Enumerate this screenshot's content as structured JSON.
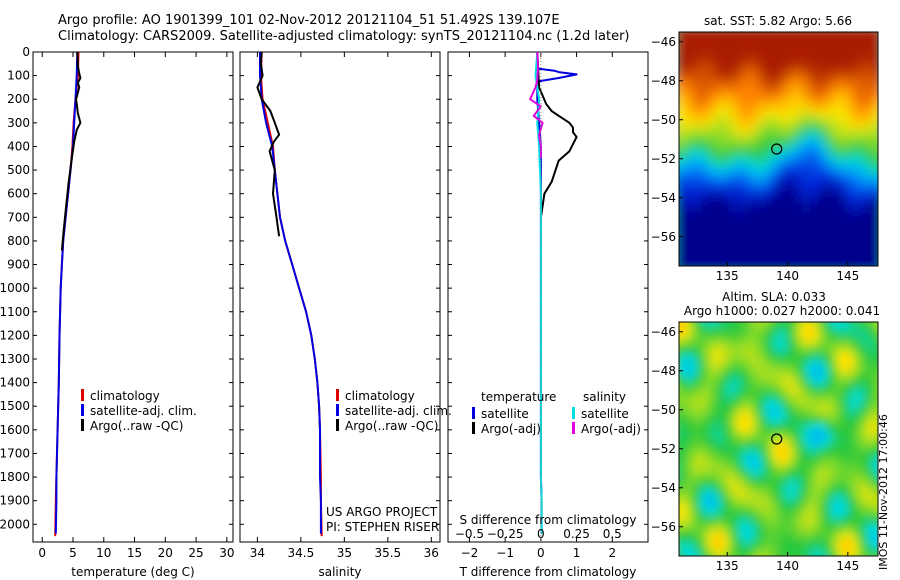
{
  "header": {
    "line1": "Argo profile: AO 1901399_101 02-Nov-2012 20121104_51 51.492S 139.107E",
    "line2": "Climatology: CARS2009. Satellite-adjusted climatology: synTS_20121104.nc (1.2d later)"
  },
  "side_stamp": "IMOS 11-Nov-2012 17:00:46",
  "project_credit": [
    "US ARGO PROJECT",
    "PI: STEPHEN RISER"
  ],
  "colors": {
    "climatology": "#e00000",
    "satellite": "#0000e0",
    "argo": "#000000",
    "salinity_satellite": "#00e0e0",
    "salinity_argo": "#e000e0"
  },
  "chart_data": [
    {
      "id": "temperature",
      "type": "line",
      "xlabel": "temperature (deg C)",
      "xlim": [
        -1.5,
        31
      ],
      "ylim": [
        2075,
        0
      ],
      "y_inverted": true,
      "xticks": [
        0,
        5,
        10,
        15,
        20,
        25,
        30
      ],
      "yticks": [
        0,
        100,
        200,
        300,
        400,
        500,
        600,
        700,
        800,
        900,
        1000,
        1100,
        1200,
        1300,
        1400,
        1500,
        1600,
        1700,
        1800,
        1900,
        2000
      ],
      "legend": [
        "climatology",
        "satellite-adj. clim.",
        "Argo(..raw -QC)"
      ],
      "series": [
        {
          "name": "climatology",
          "color": "#e00000",
          "x": [
            5.9,
            5.8,
            5.4,
            5.1,
            4.9,
            4.6,
            4.2,
            3.8,
            3.4,
            3.2,
            3.0,
            2.9,
            2.8,
            2.7,
            2.6,
            2.5,
            2.4,
            2.3,
            2.2,
            2.1
          ],
          "y": [
            0,
            100,
            200,
            300,
            400,
            500,
            600,
            700,
            800,
            900,
            1000,
            1100,
            1200,
            1400,
            1500,
            1600,
            1700,
            1800,
            1900,
            2050
          ]
        },
        {
          "name": "satellite-adj. clim.",
          "color": "#0000e0",
          "x": [
            5.7,
            5.6,
            5.4,
            5.2,
            5.0,
            4.6,
            4.2,
            3.8,
            3.4,
            3.2,
            3.0,
            2.9,
            2.8,
            2.7,
            2.6,
            2.5,
            2.4,
            2.3,
            2.3,
            2.2
          ],
          "y": [
            0,
            100,
            200,
            300,
            400,
            500,
            600,
            700,
            800,
            900,
            1000,
            1100,
            1200,
            1400,
            1500,
            1600,
            1700,
            1800,
            1900,
            2040
          ]
        },
        {
          "name": "Argo(..raw -QC)",
          "color": "#000000",
          "x": [
            5.7,
            5.8,
            6.0,
            6.2,
            5.8,
            6.0,
            5.5,
            5.8,
            6.2,
            5.6,
            5.2,
            4.8,
            4.3,
            3.9,
            3.5,
            3.2
          ],
          "y": [
            0,
            60,
            90,
            110,
            130,
            150,
            200,
            260,
            300,
            330,
            380,
            450,
            550,
            650,
            750,
            840
          ]
        }
      ]
    },
    {
      "id": "salinity",
      "type": "line",
      "xlabel": "salinity",
      "xlim": [
        33.8,
        36.1
      ],
      "ylim": [
        2075,
        0
      ],
      "y_inverted": true,
      "xticks": [
        34,
        34.5,
        35,
        35.5,
        36
      ],
      "legend": [
        "climatology",
        "satellite-adj. clim.",
        "Argo(..raw -QC)"
      ],
      "series": [
        {
          "name": "climatology",
          "color": "#e00000",
          "x": [
            34.05,
            34.04,
            34.06,
            34.12,
            34.18,
            34.2,
            34.23,
            34.26,
            34.32,
            34.4,
            34.48,
            34.56,
            34.62,
            34.66,
            34.69,
            34.71,
            34.72,
            34.73,
            34.73,
            34.74
          ],
          "y": [
            0,
            100,
            200,
            300,
            400,
            500,
            600,
            700,
            800,
            900,
            1000,
            1100,
            1200,
            1300,
            1400,
            1500,
            1600,
            1800,
            1900,
            2050
          ]
        },
        {
          "name": "satellite-adj. clim.",
          "color": "#0000e0",
          "x": [
            34.03,
            34.03,
            34.05,
            34.1,
            34.17,
            34.2,
            34.23,
            34.26,
            34.32,
            34.4,
            34.48,
            34.56,
            34.62,
            34.66,
            34.69,
            34.71,
            34.72,
            34.72,
            34.73,
            34.73
          ],
          "y": [
            0,
            100,
            200,
            300,
            400,
            500,
            600,
            700,
            800,
            900,
            1000,
            1100,
            1200,
            1300,
            1400,
            1500,
            1600,
            1800,
            1900,
            2040
          ]
        },
        {
          "name": "Argo(..raw -QC)",
          "color": "#000000",
          "x": [
            34.05,
            34.04,
            34.06,
            34.0,
            34.05,
            34.15,
            34.2,
            34.25,
            34.19,
            34.14,
            34.2,
            34.18,
            34.22,
            34.25
          ],
          "y": [
            0,
            50,
            100,
            150,
            200,
            250,
            300,
            350,
            380,
            420,
            500,
            600,
            700,
            780
          ]
        }
      ]
    },
    {
      "id": "difference",
      "type": "line",
      "xlabel": "T difference from climatology",
      "top_axis_label": "S difference from climatology",
      "xlim": [
        -2.6,
        3.0
      ],
      "ylim": [
        2075,
        0
      ],
      "y_inverted": true,
      "xticks": [
        -2,
        -1,
        0,
        1,
        2
      ],
      "top_ticks": [
        -0.5,
        -0.25,
        0,
        0.25,
        0.5
      ],
      "legend_groups": [
        {
          "title": "temperature",
          "entries": [
            "satellite",
            "Argo(-adj)"
          ]
        },
        {
          "title": "salinity",
          "entries": [
            "satellite",
            "Argo(-adj)"
          ]
        }
      ],
      "series": [
        {
          "name": "temperature satellite",
          "color": "#0000e0",
          "x": [
            -0.1,
            -0.1,
            0.4,
            0.5,
            1.0,
            0.5,
            -0.1,
            -0.1,
            0.0,
            0.0,
            0.0,
            0.0,
            0.0,
            0.0,
            0.0,
            0.0,
            0.0,
            0.0,
            0.02,
            0.02
          ],
          "y": [
            0,
            70,
            80,
            85,
            95,
            110,
            125,
            200,
            400,
            600,
            800,
            1000,
            1200,
            1400,
            1500,
            1600,
            1700,
            1800,
            1900,
            2040
          ]
        },
        {
          "name": "temperature Argo(-adj)",
          "color": "#000000",
          "x": [
            -0.1,
            -0.05,
            0.15,
            0.3,
            0.5,
            0.8,
            0.9,
            0.9,
            1.0,
            0.8,
            0.5,
            0.3,
            0.1,
            0.0
          ],
          "y": [
            0,
            150,
            220,
            250,
            270,
            300,
            320,
            340,
            360,
            420,
            460,
            550,
            600,
            700
          ]
        },
        {
          "name": "salinity satellite",
          "color": "#00e0e0",
          "x": [
            -0.1,
            -0.15,
            -0.05,
            -0.1,
            -0.05,
            0.0,
            0.0,
            0.0,
            0.0,
            0.0,
            0.0,
            0.0,
            0.0,
            0.0,
            0.02,
            0.02
          ],
          "y": [
            0,
            100,
            200,
            300,
            400,
            600,
            800,
            1000,
            1200,
            1400,
            1500,
            1600,
            1700,
            1800,
            1900,
            2040
          ]
        },
        {
          "name": "salinity Argo(-adj)",
          "color": "#e000e0",
          "x": [
            -0.1,
            -0.08,
            -0.1,
            -0.15,
            -0.3,
            0.0,
            -0.2,
            0.05,
            -0.05,
            0.0,
            0.0
          ],
          "y": [
            0,
            60,
            120,
            150,
            200,
            230,
            270,
            300,
            350,
            400,
            450
          ]
        }
      ]
    },
    {
      "id": "sst-map",
      "type": "heatmap",
      "title": "sat. SST: 5.82 Argo: 5.66",
      "xlim": [
        131,
        147.5
      ],
      "ylim": [
        -57.5,
        -45.5
      ],
      "xticks": [
        135,
        140,
        145
      ],
      "yticks": [
        -46,
        -48,
        -50,
        -52,
        -54,
        -56
      ],
      "marker": {
        "lon": 139.1,
        "lat": -51.5
      }
    },
    {
      "id": "sla-map",
      "type": "heatmap",
      "title": [
        "Altim. SLA: 0.033",
        "Argo h1000: 0.027 h2000: 0.041"
      ],
      "xlim": [
        131,
        147.5
      ],
      "ylim": [
        -57.5,
        -45.5
      ],
      "xticks": [
        135,
        140,
        145
      ],
      "yticks": [
        -46,
        -48,
        -50,
        -52,
        -54,
        -56
      ],
      "marker": {
        "lon": 139.1,
        "lat": -51.5
      }
    }
  ]
}
